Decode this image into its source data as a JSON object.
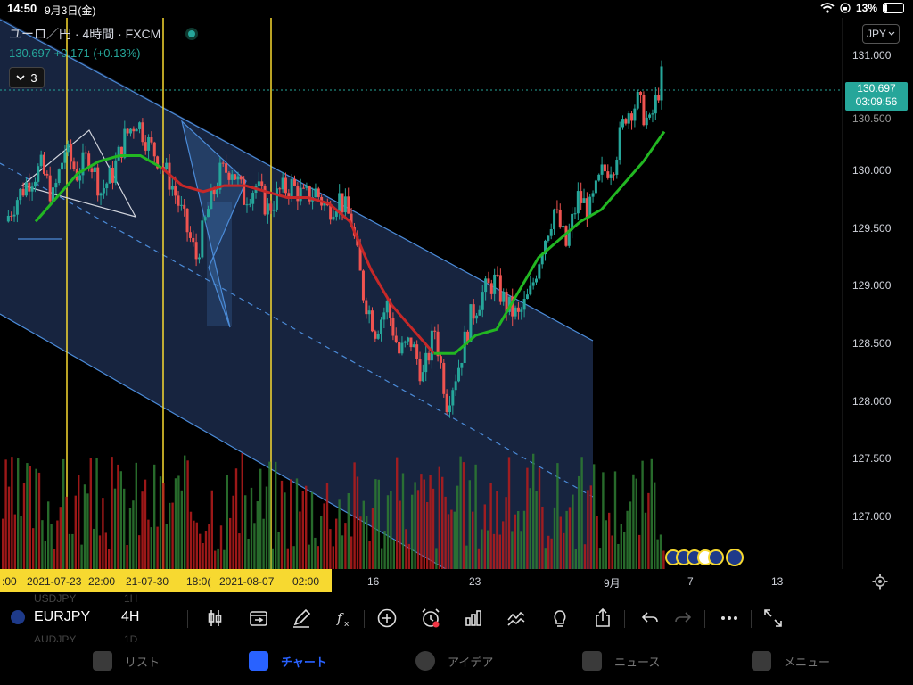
{
  "status_bar": {
    "time": "14:50",
    "date": "9月3日(金)",
    "battery": "13%"
  },
  "header": {
    "title": "ユーロ／円 · 4時間 · FXCM",
    "price": "130.697",
    "change": "+0.171 (+0.13%)",
    "indicator_count": "3",
    "currency": "JPY"
  },
  "price_axis": {
    "labels": [
      "131.000",
      "130.500",
      "130.000",
      "129.500",
      "129.000",
      "128.500",
      "128.000",
      "127.500",
      "127.000"
    ],
    "current_price": "130.697",
    "countdown": "03:09:56"
  },
  "time_axis": {
    "highlighted": [
      ":00",
      "2021-07-23",
      "22:00",
      "21-07-30",
      "18:0(",
      "2021-08-07",
      "02:00"
    ],
    "others": [
      "16",
      "23",
      "9月",
      "7",
      "13"
    ]
  },
  "toolbar": {
    "symbol": "EURJPY",
    "interval": "4H",
    "ghost_rows": [
      "USDJPY",
      "AUDJPY",
      "1H",
      "1D"
    ],
    "icons": [
      "candlestick-icon",
      "replay-icon",
      "draw-pen-icon",
      "indicator-fx-icon",
      "add-icon",
      "alert-clock-icon",
      "bar-chart-icon",
      "compare-icon",
      "idea-lightbulb-icon",
      "share-icon",
      "undo-icon",
      "redo-icon",
      "more-icon",
      "fullscreen-icon"
    ]
  },
  "bottom_nav": [
    {
      "label": "リスト",
      "icon": "star-icon",
      "active": false
    },
    {
      "label": "チャート",
      "icon": "chart-icon",
      "active": true
    },
    {
      "label": "アイデア",
      "icon": "bulb-icon",
      "active": false
    },
    {
      "label": "ニュース",
      "icon": "news-icon",
      "active": false
    },
    {
      "label": "メニュー",
      "icon": "menu-icon",
      "active": false
    }
  ],
  "chart_data": {
    "type": "candlestick",
    "symbol": "EURJPY",
    "interval": "4H",
    "ylim": [
      126.6,
      131.2
    ],
    "close_path": [
      129.5,
      129.7,
      129.85,
      129.95,
      129.7,
      130.1,
      129.9,
      130.05,
      129.75,
      129.9,
      130.2,
      130.35,
      130.15,
      130.0,
      129.8,
      129.5,
      129.2,
      129.6,
      129.9,
      129.95,
      129.7,
      129.8,
      129.6,
      129.75,
      129.8,
      129.7,
      129.75,
      129.6,
      129.7,
      129.5,
      128.9,
      128.6,
      128.8,
      128.4,
      128.5,
      128.2,
      128.6,
      128.0,
      128.3,
      128.7,
      128.9,
      129.0,
      128.8,
      128.7,
      128.9,
      129.3,
      129.6,
      129.3,
      129.7,
      129.6,
      129.9,
      130.0,
      130.4,
      130.5,
      130.3,
      130.7
    ],
    "ma_path": [
      129.5,
      129.7,
      129.9,
      130.0,
      130.05,
      130.05,
      129.95,
      129.8,
      129.75,
      129.8,
      129.8,
      129.75,
      129.7,
      129.7,
      129.65,
      129.5,
      129.1,
      128.8,
      128.6,
      128.4,
      128.4,
      128.55,
      128.6,
      128.9,
      129.2,
      129.35,
      129.5,
      129.6,
      129.8,
      130.0,
      130.25
    ]
  }
}
